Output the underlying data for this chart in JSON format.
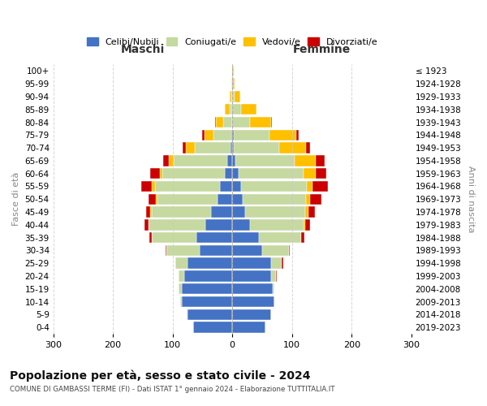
{
  "age_groups": [
    "0-4",
    "5-9",
    "10-14",
    "15-19",
    "20-24",
    "25-29",
    "30-34",
    "35-39",
    "40-44",
    "45-49",
    "50-54",
    "55-59",
    "60-64",
    "65-69",
    "70-74",
    "75-79",
    "80-84",
    "85-89",
    "90-94",
    "95-99",
    "100+"
  ],
  "birth_years": [
    "2019-2023",
    "2014-2018",
    "2009-2013",
    "2004-2008",
    "1999-2003",
    "1994-1998",
    "1989-1993",
    "1984-1988",
    "1979-1983",
    "1974-1978",
    "1969-1973",
    "1964-1968",
    "1959-1963",
    "1954-1958",
    "1949-1953",
    "1944-1948",
    "1939-1943",
    "1934-1938",
    "1929-1933",
    "1924-1928",
    "≤ 1923"
  ],
  "colors": {
    "celibi": "#4472c4",
    "coniugati": "#c5d9a0",
    "vedovi": "#ffc000",
    "divorziati": "#cc0000"
  },
  "maschi": {
    "celibi": [
      65,
      75,
      85,
      85,
      80,
      75,
      55,
      60,
      45,
      35,
      25,
      20,
      12,
      8,
      3,
      2,
      0,
      0,
      0,
      0,
      0
    ],
    "coniugati": [
      0,
      1,
      2,
      5,
      10,
      20,
      55,
      75,
      95,
      100,
      100,
      110,
      105,
      90,
      60,
      30,
      15,
      5,
      2,
      1,
      0
    ],
    "vedovi": [
      0,
      0,
      0,
      0,
      0,
      0,
      0,
      0,
      1,
      2,
      3,
      5,
      5,
      8,
      15,
      15,
      12,
      8,
      3,
      1,
      0
    ],
    "divorziati": [
      0,
      0,
      0,
      0,
      0,
      1,
      2,
      4,
      6,
      8,
      12,
      18,
      15,
      10,
      5,
      3,
      2,
      0,
      0,
      0,
      0
    ]
  },
  "femmine": {
    "celibi": [
      55,
      65,
      70,
      68,
      65,
      65,
      50,
      45,
      30,
      22,
      18,
      15,
      10,
      5,
      3,
      2,
      0,
      0,
      0,
      0,
      0
    ],
    "coniugati": [
      0,
      0,
      1,
      3,
      8,
      18,
      45,
      70,
      90,
      100,
      105,
      110,
      110,
      100,
      75,
      60,
      30,
      15,
      4,
      1,
      0
    ],
    "vedovi": [
      0,
      0,
      0,
      0,
      0,
      0,
      0,
      1,
      2,
      5,
      8,
      10,
      20,
      35,
      45,
      45,
      35,
      25,
      10,
      3,
      2
    ],
    "divorziati": [
      0,
      0,
      0,
      0,
      1,
      2,
      2,
      5,
      8,
      12,
      18,
      25,
      18,
      15,
      8,
      4,
      2,
      0,
      0,
      0,
      0
    ]
  },
  "xlim": 300,
  "title": "Popolazione per età, sesso e stato civile - 2024",
  "subtitle": "COMUNE DI GAMBASSI TERME (FI) - Dati ISTAT 1° gennaio 2024 - Elaborazione TUTTITALIA.IT",
  "xlabel_left": "Maschi",
  "xlabel_right": "Femmine",
  "ylabel_left": "Fasce di età",
  "ylabel_right": "Anni di nascita",
  "legend_labels": [
    "Celibi/Nubili",
    "Coniugati/e",
    "Vedovi/e",
    "Divorziati/e"
  ],
  "bg_color": "#ffffff",
  "grid_color": "#cccccc"
}
